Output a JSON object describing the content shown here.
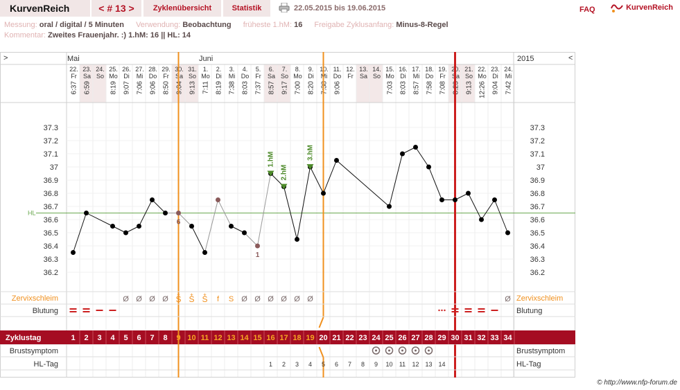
{
  "header": {
    "logo": "KurvenReich",
    "cycle_nav": "< # 13 >",
    "tab_overview": "Zyklenübersicht",
    "tab_stats": "Statistik",
    "date_range": "22.05.2015 bis 19.06.2015",
    "faq": "FAQ",
    "brand": "KurvenReich"
  },
  "meta": {
    "messung_label": "Messung:",
    "messung_value": "oral / digital / 5 Minuten",
    "verwendung_label": "Verwendung:",
    "verwendung_value": "Beobachtung",
    "frueheste_label": "früheste 1.hM:",
    "frueheste_value": "16",
    "freigabe_label": "Freigabe Zyklusanfang:",
    "freigabe_value": "Minus-8-Regel",
    "kommentar_label": "Kommentar:",
    "kommentar_value": "Zweites Frauenjahr. :) 1.hM: 16 || HL: 14"
  },
  "chart_header": {
    "left_arrow": ">",
    "right_arrow": "<",
    "month1": "Mai",
    "month2": "Juni",
    "year": "2015"
  },
  "days": [
    {
      "date": "22.",
      "dow": "Fr",
      "time": "6:37"
    },
    {
      "date": "23.",
      "dow": "Sa",
      "time": "6:59"
    },
    {
      "date": "24.",
      "dow": "So",
      "time": ""
    },
    {
      "date": "25.",
      "dow": "Mo",
      "time": "8:19"
    },
    {
      "date": "26.",
      "dow": "Di",
      "time": "9:07"
    },
    {
      "date": "27.",
      "dow": "Mi",
      "time": "7:06"
    },
    {
      "date": "28.",
      "dow": "Do",
      "time": "9:06"
    },
    {
      "date": "29.",
      "dow": "Fr",
      "time": "8:50"
    },
    {
      "date": "30.",
      "dow": "Sa",
      "time": "9:04"
    },
    {
      "date": "31.",
      "dow": "So",
      "time": "9:13"
    },
    {
      "date": "1.",
      "dow": "Mo",
      "time": "7:11"
    },
    {
      "date": "2.",
      "dow": "Di",
      "time": "8:19"
    },
    {
      "date": "3.",
      "dow": "Mi",
      "time": "7:38"
    },
    {
      "date": "4.",
      "dow": "Do",
      "time": "8:03"
    },
    {
      "date": "5.",
      "dow": "Fr",
      "time": "7:37"
    },
    {
      "date": "6.",
      "dow": "Sa",
      "time": "8:57"
    },
    {
      "date": "7.",
      "dow": "So",
      "time": "9:17"
    },
    {
      "date": "8.",
      "dow": "Mo",
      "time": "7:00"
    },
    {
      "date": "9.",
      "dow": "Di",
      "time": "8:20"
    },
    {
      "date": "10.",
      "dow": "Mi",
      "time": "7:38"
    },
    {
      "date": "11.",
      "dow": "Do",
      "time": "9:06"
    },
    {
      "date": "12.",
      "dow": "Fr",
      "time": ""
    },
    {
      "date": "13.",
      "dow": "Sa",
      "time": ""
    },
    {
      "date": "14.",
      "dow": "So",
      "time": ""
    },
    {
      "date": "15.",
      "dow": "Mo",
      "time": "7:03"
    },
    {
      "date": "16.",
      "dow": "Di",
      "time": "8:03"
    },
    {
      "date": "17.",
      "dow": "Mi",
      "time": "8:57"
    },
    {
      "date": "18.",
      "dow": "Do",
      "time": "7:58"
    },
    {
      "date": "19.",
      "dow": "Fr",
      "time": "7:08"
    },
    {
      "date": "20.",
      "dow": "Sa",
      "time": "8:23"
    },
    {
      "date": "21.",
      "dow": "So",
      "time": "9:13"
    },
    {
      "date": "22.",
      "dow": "Mo",
      "time": "12:26"
    },
    {
      "date": "23.",
      "dow": "Di",
      "time": "9:04"
    },
    {
      "date": "24.",
      "dow": "Mi",
      "time": "7:42"
    }
  ],
  "rows": {
    "zervix_label": "Zervixschleim",
    "blutung_label": "Blutung",
    "zyklustag_label": "Zyklustag",
    "brust_label": "Brustsymptom",
    "hltag_label": "HL-Tag"
  },
  "zervix": [
    "",
    "",
    "",
    "",
    "Ø",
    "Ø",
    "Ø",
    "Ø",
    "S+",
    "S+",
    "S+",
    "f",
    "S",
    "Ø",
    "Ø",
    "Ø",
    "Ø",
    "Ø",
    "Ø",
    "",
    "",
    "",
    "",
    "",
    "",
    "",
    "",
    "",
    "",
    "",
    "",
    "",
    "",
    "Ø"
  ],
  "blutung": [
    2,
    2,
    1,
    1,
    0,
    0,
    0,
    0,
    0,
    0,
    0,
    0,
    0,
    0,
    0,
    0,
    0,
    0,
    0,
    0,
    0,
    0,
    0,
    0,
    0,
    0,
    0,
    0,
    3,
    2,
    2,
    2,
    1,
    0
  ],
  "brust": [
    24,
    25,
    26,
    27,
    28
  ],
  "hl_tag": [
    "",
    "",
    "",
    "",
    "",
    "",
    "",
    "",
    "",
    "",
    "",
    "",
    "",
    "",
    "",
    "1",
    "2",
    "3",
    "4",
    "5",
    "6",
    "7",
    "8",
    "9",
    "10",
    "11",
    "12",
    "13",
    "14",
    "",
    "",
    "",
    "",
    ""
  ],
  "chart_data": {
    "type": "line",
    "x": [
      1,
      2,
      3,
      4,
      5,
      6,
      7,
      8,
      9,
      10,
      11,
      12,
      13,
      14,
      15,
      16,
      17,
      18,
      19,
      20,
      21,
      22,
      23,
      24,
      25,
      26,
      27,
      28,
      29,
      30,
      31,
      32,
      33,
      34
    ],
    "series": [
      {
        "values": [
          36.35,
          36.65,
          null,
          36.55,
          36.5,
          36.55,
          36.75,
          36.65,
          36.65,
          36.55,
          36.35,
          36.75,
          36.55,
          36.5,
          36.4,
          36.95,
          36.85,
          36.45,
          37.0,
          36.8,
          37.05,
          null,
          null,
          null,
          36.7,
          37.1,
          37.15,
          37.0,
          36.75,
          36.75,
          36.8,
          36.6,
          36.75,
          36.5
        ]
      }
    ],
    "y_ticks": [
      "37.3",
      "37.2",
      "37.1",
      "37",
      "36.9",
      "36.8",
      "36.7",
      "36.6",
      "36.5",
      "36.4",
      "36.3",
      "36.2"
    ],
    "ylim": [
      36.2,
      37.3
    ],
    "hl_label": "HL",
    "hl_value": 36.65,
    "hm_labels": [
      "1.hM",
      "2.hM",
      "3.hM"
    ],
    "hm_days": [
      16,
      17,
      19
    ],
    "excluded_labels": [
      "6",
      "1"
    ],
    "excluded_days": [
      9,
      15
    ],
    "grey_days": [
      9,
      12,
      15
    ],
    "vlines": {
      "orange": [
        8.5,
        19.5
      ],
      "red": 29.5
    }
  },
  "colors": {
    "accent": "#b41224",
    "orange": "#f0901e",
    "green": "#4d8a2a",
    "grid": "#e6e6e6"
  },
  "copyright": "© http://www.nfp-forum.de"
}
